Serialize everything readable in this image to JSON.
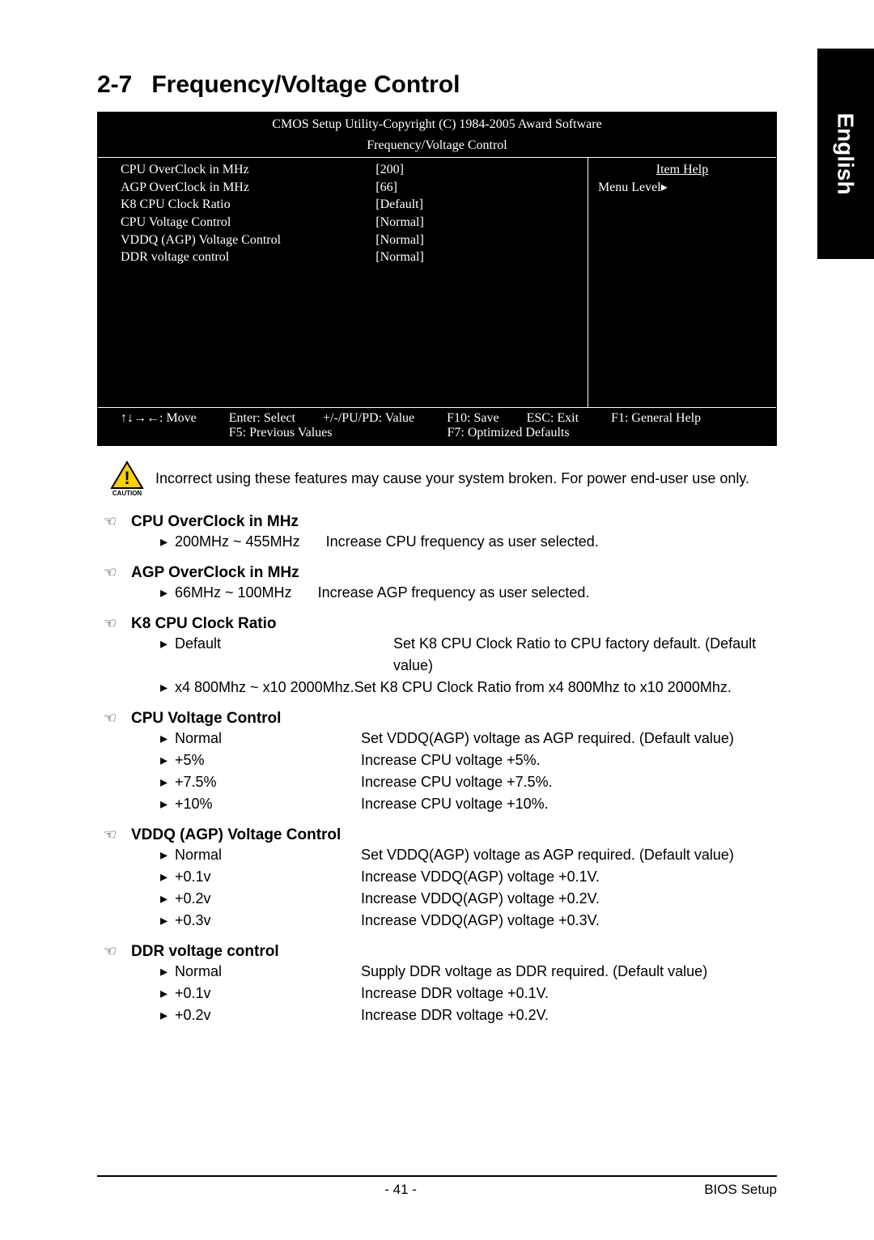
{
  "sideTab": "English",
  "chapter": {
    "num": "2-7",
    "title": "Frequency/Voltage Control"
  },
  "bios": {
    "title": "CMOS Setup Utility-Copyright (C) 1984-2005 Award Software",
    "subtitle": "Frequency/Voltage Control",
    "leftItems": [
      "CPU OverClock in MHz",
      "AGP OverClock in MHz",
      "K8 CPU Clock Ratio",
      "CPU Voltage Control",
      "VDDQ (AGP) Voltage Control",
      "DDR voltage control"
    ],
    "midItems": [
      "[200]",
      "[66]",
      "[Default]",
      "[Normal]",
      "[Normal]",
      "[Normal]"
    ],
    "rightHeader": "Item Help",
    "rightLine": "Menu Level▸",
    "footer": {
      "move": "↑↓→←: Move",
      "enter": "Enter: Select",
      "pupd": "+/-/PU/PD: Value",
      "f10": "F10: Save",
      "esc": "ESC: Exit",
      "f1": "F1: General Help",
      "f5": "F5: Previous Values",
      "f7": "F7: Optimized Defaults"
    }
  },
  "cautionLabel": "CAUTION",
  "cautionText": "Incorrect using these features may cause your system broken. For power end-user use only.",
  "sections": [
    {
      "title": "CPU OverClock in MHz",
      "items": [
        {
          "opt": "200MHz ~ 455MHz",
          "desc": "Increase CPU frequency as user selected.",
          "short": true
        }
      ]
    },
    {
      "title": "AGP OverClock in MHz",
      "items": [
        {
          "opt": "66MHz ~ 100MHz",
          "desc": "Increase AGP frequency as user selected.",
          "short": true
        }
      ]
    },
    {
      "title": "K8 CPU Clock Ratio",
      "items": [
        {
          "opt": "Default",
          "desc": "Set K8 CPU Clock Ratio to CPU factory default. (Default value)",
          "wide": true
        },
        {
          "opt": "x4 800Mhz ~ x10 2000Mhz.Set K8 CPU Clock Ratio from x4 800Mhz to x10 2000Mhz.",
          "full": true
        }
      ]
    },
    {
      "title": "CPU Voltage Control",
      "items": [
        {
          "opt": "Normal",
          "desc": "Set VDDQ(AGP) voltage as AGP required. (Default value)"
        },
        {
          "opt": "+5%",
          "desc": "Increase CPU voltage +5%."
        },
        {
          "opt": "+7.5%",
          "desc": "Increase CPU voltage +7.5%."
        },
        {
          "opt": "+10%",
          "desc": "Increase CPU voltage +10%."
        }
      ]
    },
    {
      "title": "VDDQ (AGP) Voltage Control",
      "items": [
        {
          "opt": "Normal",
          "desc": "Set VDDQ(AGP) voltage as AGP required. (Default value)"
        },
        {
          "opt": "+0.1v",
          "desc": "Increase VDDQ(AGP) voltage +0.1V."
        },
        {
          "opt": "+0.2v",
          "desc": "Increase VDDQ(AGP) voltage +0.2V."
        },
        {
          "opt": "+0.3v",
          "desc": "Increase VDDQ(AGP) voltage +0.3V."
        }
      ]
    },
    {
      "title": "DDR voltage control",
      "items": [
        {
          "opt": "Normal",
          "desc": "Supply DDR voltage as DDR required. (Default value)"
        },
        {
          "opt": "+0.1v",
          "desc": "Increase DDR voltage +0.1V."
        },
        {
          "opt": "+0.2v",
          "desc": "Increase DDR voltage +0.2V."
        }
      ]
    }
  ],
  "footer": {
    "page": "- 41 -",
    "section": "BIOS Setup"
  }
}
